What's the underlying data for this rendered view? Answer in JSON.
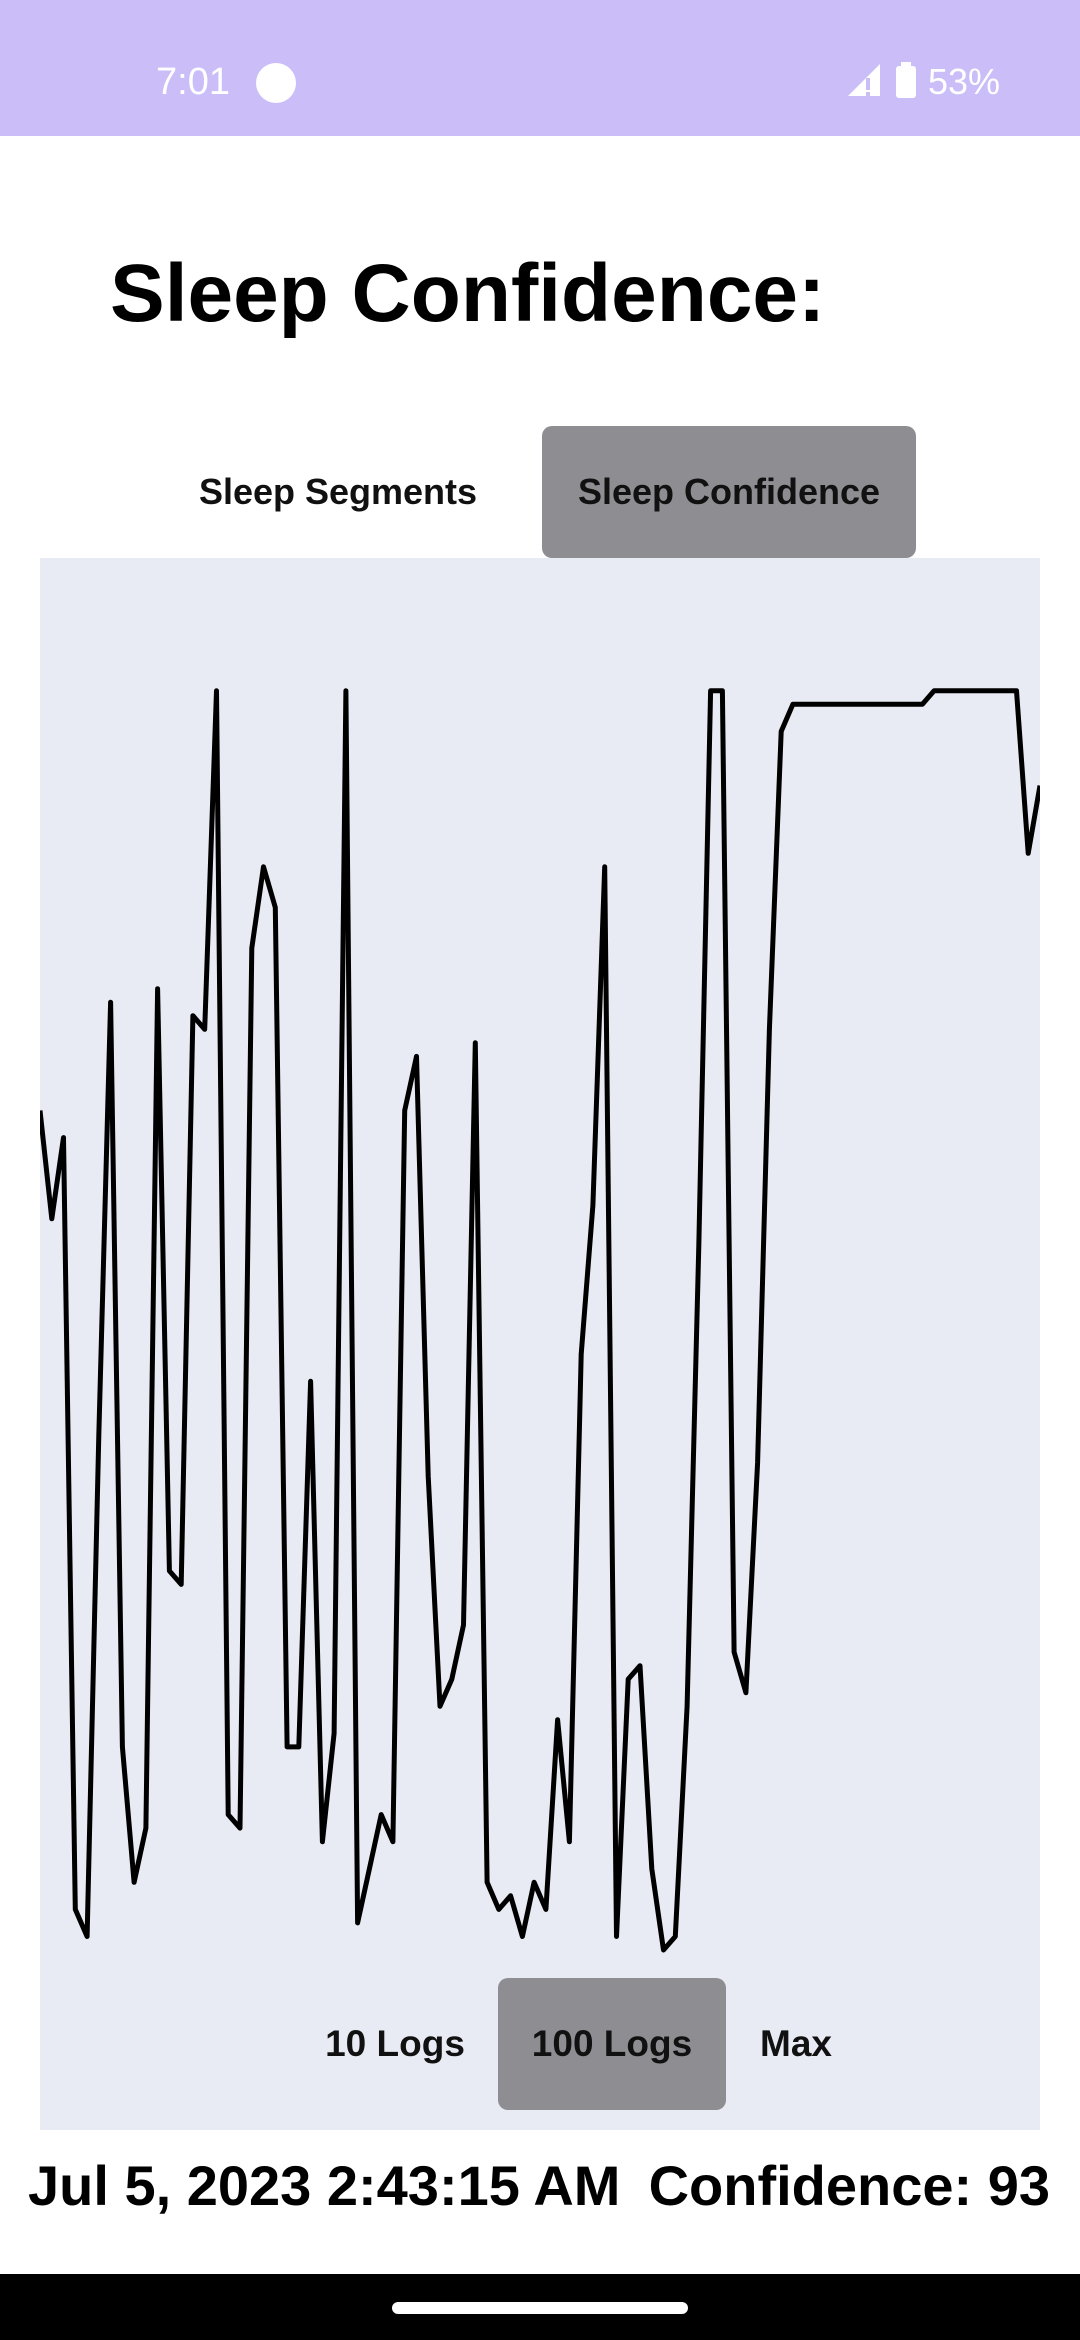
{
  "status_bar": {
    "time": "7:01",
    "battery": "53%",
    "color": "#cbbdf7"
  },
  "page": {
    "title": "Sleep Confidence:"
  },
  "tabs": [
    {
      "label": "Sleep Segments",
      "selected": false
    },
    {
      "label": "Sleep Confidence",
      "selected": true
    }
  ],
  "range_options": [
    {
      "label": "10 Logs",
      "selected": false
    },
    {
      "label": "100 Logs",
      "selected": true
    },
    {
      "label": "Max",
      "selected": false
    }
  ],
  "footer": {
    "timestamp": "Jul 5, 2023 2:43:15 AM",
    "confidence": "Confidence: 93"
  },
  "chart_data": {
    "type": "line",
    "title": "",
    "xlabel": "",
    "ylabel": "",
    "grid": false,
    "ylim": [
      0,
      100
    ],
    "line_color": "#000000",
    "background": "#e9ebf4",
    "values": [
      62,
      54,
      60,
      3,
      1,
      38,
      70,
      15,
      5,
      9,
      71,
      28,
      27,
      69,
      68,
      93,
      10,
      9,
      74,
      80,
      77,
      15,
      15,
      42,
      8,
      16,
      93,
      2,
      6,
      10,
      8,
      62,
      66,
      35,
      18,
      20,
      24,
      67,
      5,
      3,
      4,
      1,
      5,
      3,
      17,
      8,
      44,
      55,
      80,
      1,
      20,
      21,
      6,
      0,
      1,
      18,
      52,
      93,
      93,
      22,
      19,
      36,
      68,
      90,
      92,
      92,
      92,
      92,
      92,
      92,
      92,
      92,
      92,
      92,
      92,
      92,
      93,
      93,
      93,
      93,
      93,
      93,
      93,
      93,
      81,
      86
    ]
  }
}
